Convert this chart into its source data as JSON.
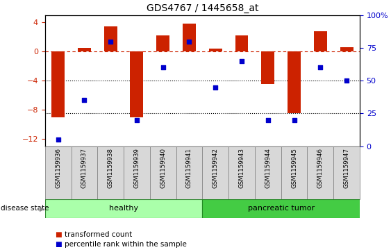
{
  "title": "GDS4767 / 1445658_at",
  "samples": [
    "GSM1159936",
    "GSM1159937",
    "GSM1159938",
    "GSM1159939",
    "GSM1159940",
    "GSM1159941",
    "GSM1159942",
    "GSM1159943",
    "GSM1159944",
    "GSM1159945",
    "GSM1159946",
    "GSM1159947"
  ],
  "bar_values": [
    -9.0,
    0.5,
    3.5,
    -9.0,
    2.2,
    3.8,
    0.4,
    2.2,
    -4.5,
    -8.5,
    2.8,
    0.6
  ],
  "dot_values": [
    5,
    35,
    80,
    20,
    60,
    80,
    45,
    65,
    20,
    20,
    60,
    50
  ],
  "bar_color": "#CC2200",
  "dot_color": "#0000CC",
  "ylim_left": [
    -13,
    5
  ],
  "ylim_right": [
    0,
    100
  ],
  "yticks_left": [
    4,
    0,
    -4,
    -8,
    -12
  ],
  "yticks_right": [
    100,
    75,
    50,
    25,
    0
  ],
  "healthy_count": 6,
  "pancreatic_count": 6,
  "healthy_color": "#AAFFAA",
  "tumor_color": "#44CC44",
  "label_bar": "transformed count",
  "label_dot": "percentile rank within the sample",
  "disease_state_label": "disease state",
  "healthy_label": "healthy",
  "tumor_label": "pancreatic tumor",
  "bar_width": 0.5,
  "background_color": "#ffffff"
}
